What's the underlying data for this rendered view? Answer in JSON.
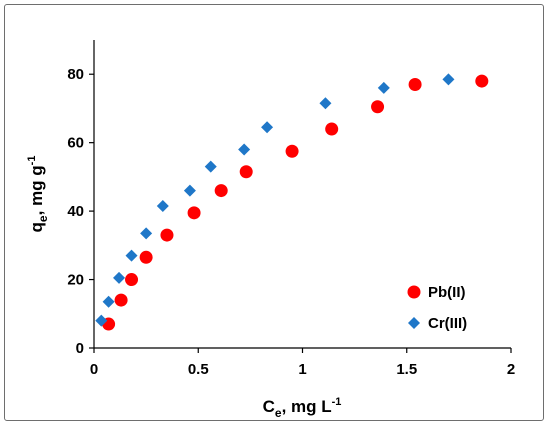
{
  "chart_data": {
    "type": "scatter",
    "title": "",
    "xlabel": {
      "main": "C",
      "sub": "e",
      "rest": ", mg L",
      "sup": "-1"
    },
    "ylabel": {
      "main": "q",
      "sub": "e",
      "rest": ", mg g",
      "sup": "-1"
    },
    "xlim": [
      0,
      2
    ],
    "ylim": [
      0,
      90
    ],
    "xticks": [
      0,
      0.5,
      1,
      1.5,
      2
    ],
    "xtick_labels": [
      "0",
      "0.5",
      "1",
      "1.5",
      "2"
    ],
    "yticks": [
      0,
      20,
      40,
      60,
      80
    ],
    "ytick_labels": [
      "0",
      "20",
      "40",
      "60",
      "80"
    ],
    "grid": false,
    "legend_position": "bottom-right",
    "series": [
      {
        "name": "Pb(II)",
        "marker": "circle",
        "color": "#ff0000",
        "points": [
          [
            0.07,
            7
          ],
          [
            0.13,
            14
          ],
          [
            0.18,
            20
          ],
          [
            0.25,
            26.5
          ],
          [
            0.35,
            33
          ],
          [
            0.48,
            39.5
          ],
          [
            0.61,
            46
          ],
          [
            0.73,
            51.5
          ],
          [
            0.95,
            57.5
          ],
          [
            1.14,
            64
          ],
          [
            1.36,
            70.5
          ],
          [
            1.54,
            77
          ],
          [
            1.86,
            78
          ]
        ]
      },
      {
        "name": "Cr(III)",
        "marker": "diamond",
        "color": "#1f77c8",
        "points": [
          [
            0.035,
            8
          ],
          [
            0.07,
            13.5
          ],
          [
            0.12,
            20.5
          ],
          [
            0.18,
            27
          ],
          [
            0.25,
            33.5
          ],
          [
            0.33,
            41.5
          ],
          [
            0.46,
            46
          ],
          [
            0.56,
            53
          ],
          [
            0.72,
            58
          ],
          [
            0.83,
            64.5
          ],
          [
            1.11,
            71.5
          ],
          [
            1.39,
            76
          ],
          [
            1.7,
            78.5
          ]
        ]
      }
    ]
  }
}
